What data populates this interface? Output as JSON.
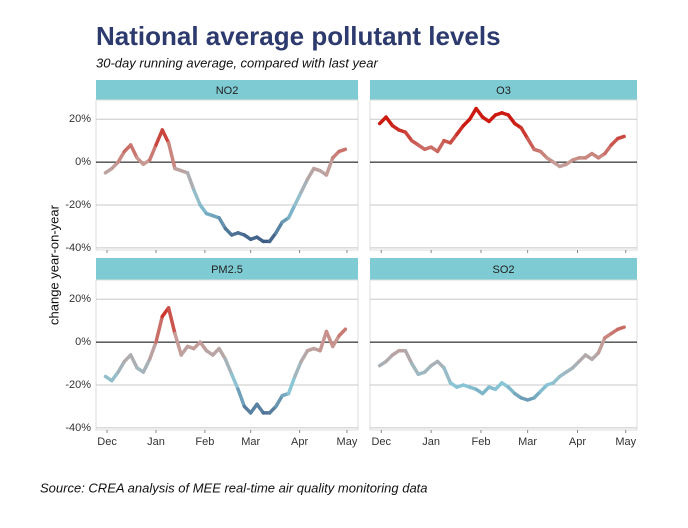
{
  "title": "National average pollutant levels",
  "subtitle": "30-day running average, compared with last year",
  "ylabel": "change year-on-year",
  "source": "Source: CREA analysis of MEE real-time air quality monitoring data",
  "color_scale": [
    {
      "value": -38,
      "color": "#3a5580"
    },
    {
      "value": -20,
      "color": "#8ac6d6"
    },
    {
      "value": 0,
      "color": "#c89a94"
    },
    {
      "value": 18,
      "color": "#cc1a10"
    }
  ],
  "chart_data": [
    {
      "type": "line",
      "title": "NO2",
      "x": [
        -1,
        3,
        7,
        11,
        15,
        19,
        23,
        27,
        31,
        35,
        39,
        43,
        47,
        51,
        55,
        59,
        63,
        67,
        71,
        75,
        79,
        83,
        87,
        91,
        95,
        99,
        103,
        107,
        111,
        115,
        119,
        123,
        127,
        131,
        135,
        139,
        143,
        147,
        151
      ],
      "values": [
        -5,
        -3,
        0,
        5,
        8,
        2,
        -1,
        1,
        8,
        15,
        9,
        -3,
        -4,
        -5,
        -13,
        -20,
        -24,
        -25,
        -26,
        -31,
        -34,
        -33,
        -34,
        -36,
        -35,
        -37,
        -37,
        -33,
        -28,
        -26,
        -20,
        -14,
        -8,
        -3,
        -4,
        -6,
        2,
        5,
        6
      ],
      "xlim": [
        -7,
        159
      ],
      "xticks": [
        {
          "value": 0,
          "label": "Dec"
        },
        {
          "value": 31,
          "label": "Jan"
        },
        {
          "value": 62,
          "label": "Feb"
        },
        {
          "value": 91,
          "label": "Mar"
        },
        {
          "value": 122,
          "label": "Apr"
        },
        {
          "value": 152,
          "label": "May"
        }
      ],
      "ylim": [
        -41,
        29
      ],
      "yticks": [
        {
          "value": -40,
          "label": "-40%"
        },
        {
          "value": -20,
          "label": "-20%"
        },
        {
          "value": 0,
          "label": "0%"
        },
        {
          "value": 20,
          "label": "20%"
        }
      ]
    },
    {
      "type": "line",
      "title": "O3",
      "x": [
        -1,
        3,
        7,
        11,
        15,
        19,
        23,
        27,
        31,
        35,
        39,
        43,
        47,
        51,
        55,
        59,
        63,
        67,
        71,
        75,
        79,
        83,
        87,
        91,
        95,
        99,
        103,
        107,
        111,
        115,
        119,
        123,
        127,
        131,
        135,
        139,
        143,
        147,
        151
      ],
      "values": [
        18,
        21,
        17,
        15,
        14,
        10,
        8,
        6,
        7,
        5,
        10,
        9,
        13,
        17,
        20,
        25,
        21,
        19,
        22,
        23,
        22,
        18,
        16,
        11,
        6,
        5,
        2,
        0,
        -2,
        -1,
        1,
        2,
        2,
        4,
        2,
        4,
        8,
        11,
        12
      ],
      "xlim": [
        -7,
        159
      ],
      "xticks": [
        {
          "value": 0,
          "label": "Dec"
        },
        {
          "value": 31,
          "label": "Jan"
        },
        {
          "value": 62,
          "label": "Feb"
        },
        {
          "value": 91,
          "label": "Mar"
        },
        {
          "value": 122,
          "label": "Apr"
        },
        {
          "value": 152,
          "label": "May"
        }
      ],
      "ylim": [
        -41,
        29
      ],
      "yticks": [
        {
          "value": -40,
          "label": "-40%"
        },
        {
          "value": -20,
          "label": "-20%"
        },
        {
          "value": 0,
          "label": "0%"
        },
        {
          "value": 20,
          "label": "20%"
        }
      ]
    },
    {
      "type": "line",
      "title": "PM2.5",
      "x": [
        -1,
        3,
        7,
        11,
        15,
        19,
        23,
        27,
        31,
        35,
        39,
        43,
        47,
        51,
        55,
        59,
        63,
        67,
        71,
        75,
        79,
        83,
        87,
        91,
        95,
        99,
        103,
        107,
        111,
        115,
        119,
        123,
        127,
        131,
        135,
        139,
        143,
        147,
        151
      ],
      "values": [
        -16,
        -18,
        -14,
        -9,
        -6,
        -12,
        -14,
        -8,
        0,
        12,
        16,
        4,
        -6,
        -2,
        -3,
        0,
        -4,
        -6,
        -3,
        -8,
        -15,
        -22,
        -30,
        -33,
        -29,
        -33,
        -33,
        -30,
        -25,
        -24,
        -16,
        -9,
        -4,
        -3,
        -4,
        5,
        -2,
        3,
        6
      ],
      "xlim": [
        -7,
        159
      ],
      "xticks": [
        {
          "value": 0,
          "label": "Dec"
        },
        {
          "value": 31,
          "label": "Jan"
        },
        {
          "value": 62,
          "label": "Feb"
        },
        {
          "value": 91,
          "label": "Mar"
        },
        {
          "value": 122,
          "label": "Apr"
        },
        {
          "value": 152,
          "label": "May"
        }
      ],
      "ylim": [
        -41,
        29
      ],
      "yticks": [
        {
          "value": -40,
          "label": "-40%"
        },
        {
          "value": -20,
          "label": "-20%"
        },
        {
          "value": 0,
          "label": "0%"
        },
        {
          "value": 20,
          "label": "20%"
        }
      ]
    },
    {
      "type": "line",
      "title": "SO2",
      "x": [
        -1,
        3,
        7,
        11,
        15,
        19,
        23,
        27,
        31,
        35,
        39,
        43,
        47,
        51,
        55,
        59,
        63,
        67,
        71,
        75,
        79,
        83,
        87,
        91,
        95,
        99,
        103,
        107,
        111,
        115,
        119,
        123,
        127,
        131,
        135,
        139,
        143,
        147,
        151
      ],
      "values": [
        -11,
        -9,
        -6,
        -4,
        -4,
        -10,
        -15,
        -14,
        -11,
        -9,
        -12,
        -19,
        -21,
        -20,
        -21,
        -22,
        -24,
        -21,
        -22,
        -19,
        -21,
        -24,
        -26,
        -27,
        -26,
        -23,
        -20,
        -19,
        -16,
        -14,
        -12,
        -9,
        -6,
        -8,
        -5,
        2,
        4,
        6,
        7
      ],
      "xlim": [
        -7,
        159
      ],
      "xticks": [
        {
          "value": 0,
          "label": "Dec"
        },
        {
          "value": 31,
          "label": "Jan"
        },
        {
          "value": 62,
          "label": "Feb"
        },
        {
          "value": 91,
          "label": "Mar"
        },
        {
          "value": 122,
          "label": "Apr"
        },
        {
          "value": 152,
          "label": "May"
        }
      ],
      "ylim": [
        -41,
        29
      ],
      "yticks": [
        {
          "value": -40,
          "label": "-40%"
        },
        {
          "value": -20,
          "label": "-20%"
        },
        {
          "value": 0,
          "label": "0%"
        },
        {
          "value": 20,
          "label": "20%"
        }
      ]
    }
  ]
}
